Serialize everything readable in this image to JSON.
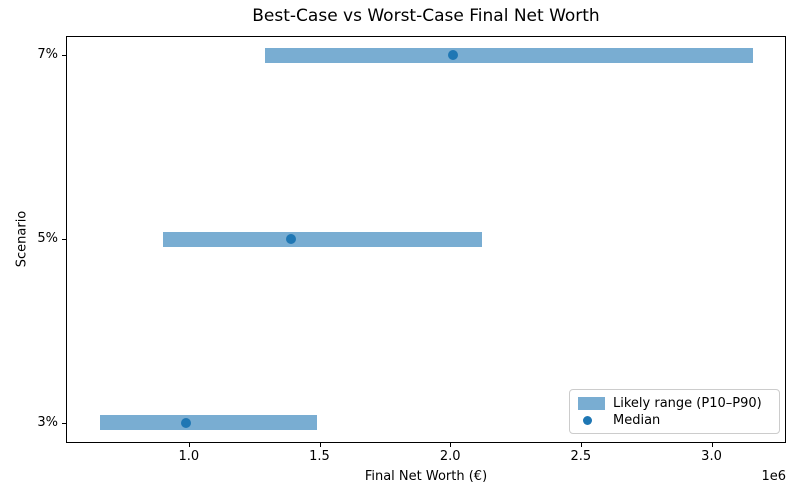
{
  "figure": {
    "title": "Best-Case vs Worst-Case Final Net Worth",
    "xlabel": "Final Net Worth (€)",
    "ylabel": "Scenario",
    "axis_offset_label": "1e6"
  },
  "legend": {
    "position": "lower right",
    "items": [
      {
        "label": "Likely range (P10–P90)",
        "marker": "bar-swatch",
        "color": "#72add2"
      },
      {
        "label": "Median",
        "marker": "dot",
        "color": "#1f77b4"
      }
    ]
  },
  "chart_data": {
    "type": "bar",
    "subtype": "horizontal-range-bars-with-median-points",
    "title": "Best-Case vs Worst-Case Final Net Worth",
    "xlabel": "Final Net Worth (€)",
    "ylabel": "Scenario",
    "categories": [
      "3%",
      "5%",
      "7%"
    ],
    "series": [
      {
        "name": "Likely range (P10–P90)",
        "role": "range",
        "p10": [
          660000,
          900000,
          1290000
        ],
        "p90": [
          1490000,
          2120000,
          3160000
        ]
      },
      {
        "name": "Median",
        "role": "point",
        "values": [
          990000,
          1390000,
          2010000
        ]
      }
    ],
    "xlim": [
      530000,
      3285000
    ],
    "x_ticks": [
      {
        "value": 1000000,
        "label": "1.0"
      },
      {
        "value": 1500000,
        "label": "1.5"
      },
      {
        "value": 2000000,
        "label": "2.0"
      },
      {
        "value": 2500000,
        "label": "2.5"
      },
      {
        "value": 3000000,
        "label": "3.0"
      }
    ],
    "x_scale_offset_text": "1e6",
    "grid": false,
    "legend_position": "lower right",
    "colors": {
      "range_bar": "rgba(31,119,180,0.6)",
      "range_bar_hex": "#72add2",
      "median_dot": "#1f77b4"
    }
  }
}
